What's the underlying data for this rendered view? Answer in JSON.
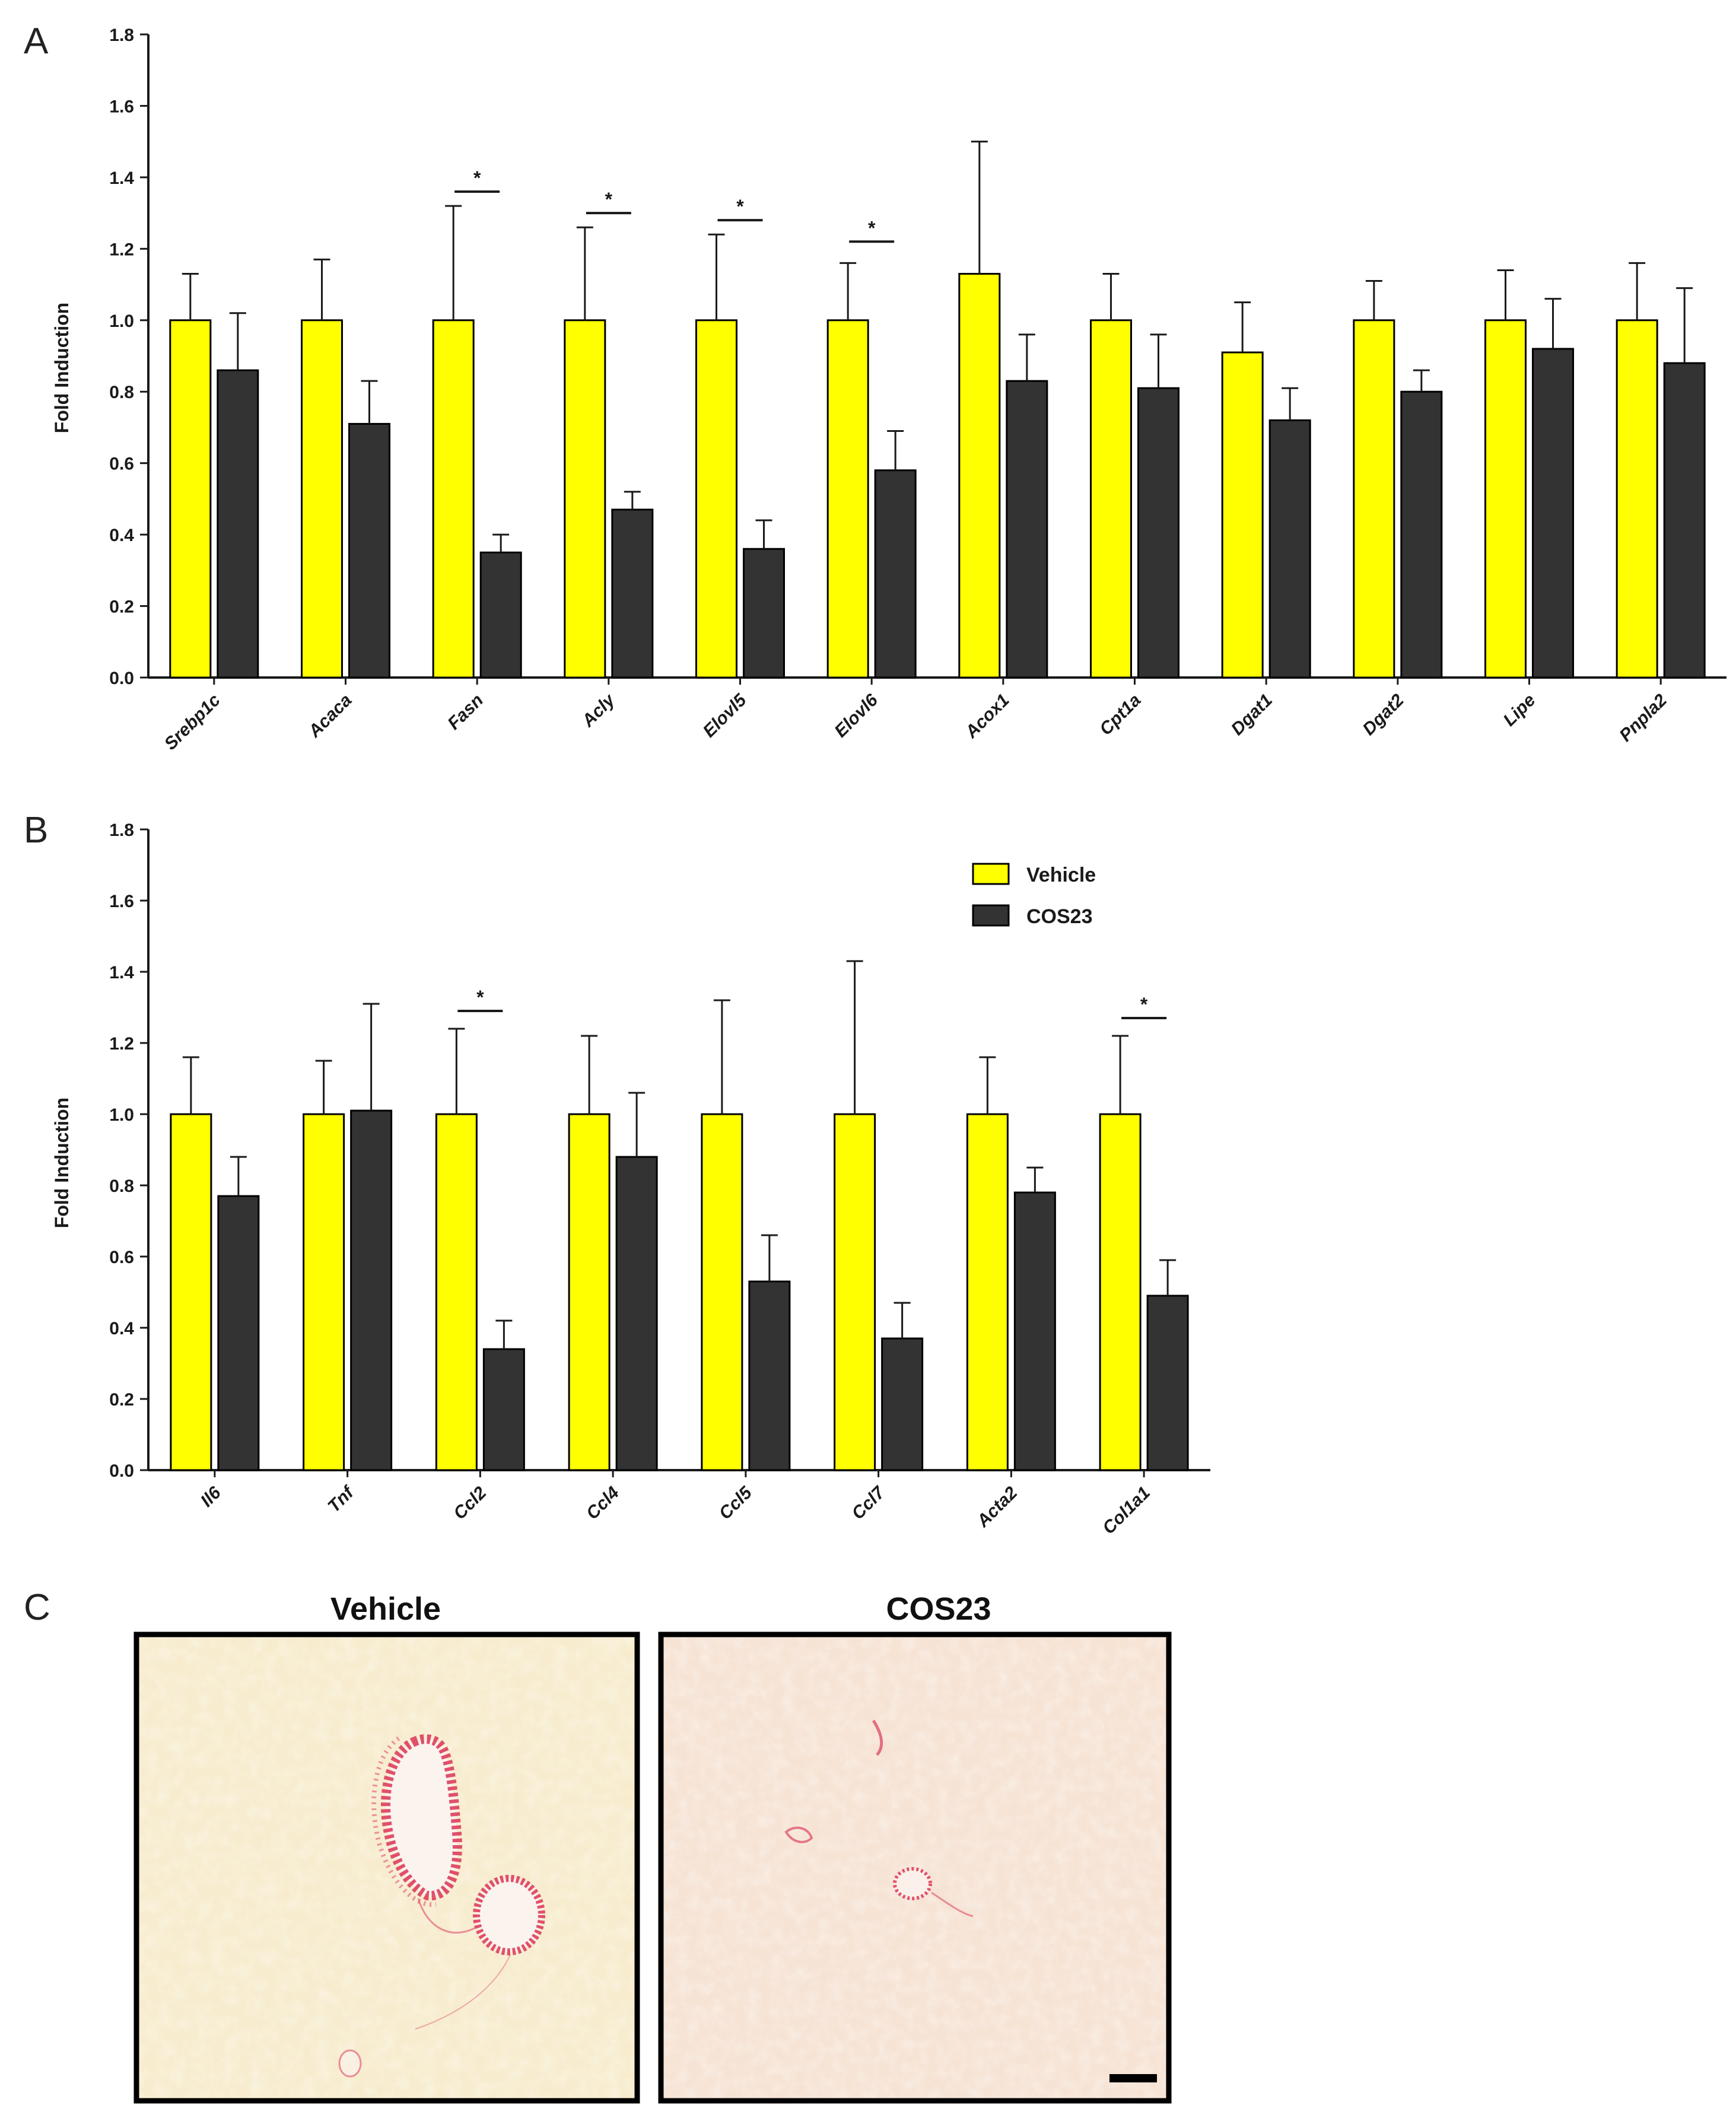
{
  "panels": {
    "a": "A",
    "b": "B",
    "c": "C"
  },
  "colors": {
    "vehicle": "#ffff00",
    "cos23": "#333333",
    "axis": "#1a1a1a",
    "bar_edge": "#000000",
    "tissue_vehicle": "#f7ecce",
    "tissue_cos23": "#f6e3d4",
    "stain": "#e0506b"
  },
  "chart_data": [
    {
      "type": "bar",
      "panel": "A",
      "ylabel": "Fold Induction",
      "ylim": [
        0,
        1.8
      ],
      "yticks": [
        "0.0",
        "0.2",
        "0.4",
        "0.6",
        "0.8",
        "1.0",
        "1.2",
        "1.4",
        "1.6",
        "1.8"
      ],
      "categories": [
        "Srebp1c",
        "Acaca",
        "Fasn",
        "Acly",
        "Elovl5",
        "Elovl6",
        "Acox1",
        "Cpt1a",
        "Dgat1",
        "Dgat2",
        "Lipe",
        "Pnpla2"
      ],
      "series": [
        {
          "name": "Vehicle",
          "color": "#ffff00",
          "values": [
            1.0,
            1.0,
            1.0,
            1.0,
            1.0,
            1.0,
            1.13,
            1.0,
            0.91,
            1.0,
            1.0,
            1.0
          ],
          "errors": [
            0.13,
            0.17,
            0.32,
            0.26,
            0.24,
            0.16,
            0.37,
            0.13,
            0.14,
            0.11,
            0.14,
            0.16
          ]
        },
        {
          "name": "COS23",
          "color": "#333333",
          "values": [
            0.86,
            0.71,
            0.35,
            0.47,
            0.36,
            0.58,
            0.83,
            0.81,
            0.72,
            0.8,
            0.92,
            0.88
          ],
          "errors": [
            0.16,
            0.12,
            0.05,
            0.05,
            0.08,
            0.11,
            0.13,
            0.15,
            0.09,
            0.06,
            0.14,
            0.21
          ]
        }
      ],
      "significance": [
        {
          "category_index": 2,
          "label": "*",
          "level": 1.36
        },
        {
          "category_index": 3,
          "label": "*",
          "level": 1.3
        },
        {
          "category_index": 4,
          "label": "*",
          "level": 1.28
        },
        {
          "category_index": 5,
          "label": "*",
          "level": 1.22
        }
      ]
    },
    {
      "type": "bar",
      "panel": "B",
      "ylabel": "Fold Induction",
      "ylim": [
        0,
        1.8
      ],
      "yticks": [
        "0.0",
        "0.2",
        "0.4",
        "0.6",
        "0.8",
        "1.0",
        "1.2",
        "1.4",
        "1.6",
        "1.8"
      ],
      "categories": [
        "Il6",
        "Tnf",
        "Ccl2",
        "Ccl4",
        "Ccl5",
        "Ccl7",
        "Acta2",
        "Col1a1"
      ],
      "series": [
        {
          "name": "Vehicle",
          "color": "#ffff00",
          "values": [
            1.0,
            1.0,
            1.0,
            1.0,
            1.0,
            1.0,
            1.0,
            1.0
          ],
          "errors": [
            0.16,
            0.15,
            0.24,
            0.22,
            0.32,
            0.43,
            0.16,
            0.22
          ]
        },
        {
          "name": "COS23",
          "color": "#333333",
          "values": [
            0.77,
            1.01,
            0.34,
            0.88,
            0.53,
            0.37,
            0.78,
            0.49
          ],
          "errors": [
            0.11,
            0.3,
            0.08,
            0.18,
            0.13,
            0.1,
            0.07,
            0.1
          ]
        }
      ],
      "significance": [
        {
          "category_index": 2,
          "label": "*",
          "level": 1.29
        },
        {
          "category_index": 7,
          "label": "*",
          "level": 1.27
        }
      ],
      "legend": {
        "position": "top-right",
        "entries": [
          "Vehicle",
          "COS23"
        ]
      }
    }
  ],
  "micrographs": {
    "left_title": "Vehicle",
    "right_title": "COS23"
  }
}
